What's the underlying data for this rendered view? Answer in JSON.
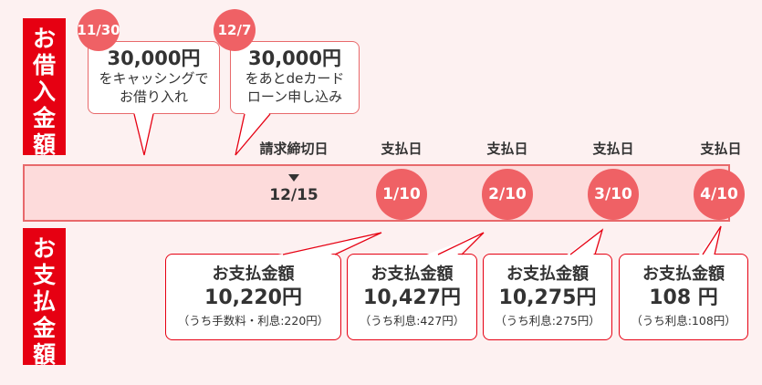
{
  "borrow": {
    "label": "お借入金額",
    "events": [
      {
        "date": "11/30",
        "amount": "30,000円",
        "line1": "をキャッシングで",
        "line2": "お借り入れ"
      },
      {
        "date": "12/7",
        "amount": "30,000円",
        "line1": "をあとdeカード",
        "line2": "ローン申し込み"
      }
    ]
  },
  "timeline": {
    "cutoff_label": "請求締切日",
    "cutoff_date": "12/15",
    "payday_label": "支払日",
    "paydays": [
      "1/10",
      "2/10",
      "3/10",
      "4/10"
    ]
  },
  "payment": {
    "label": "お支払金額",
    "items": [
      {
        "title": "お支払金額",
        "amount": "10,220円",
        "detail": "（うち手数料・利息:220円）"
      },
      {
        "title": "お支払金額",
        "amount": "10,427円",
        "detail": "（うち利息:427円）"
      },
      {
        "title": "お支払金額",
        "amount": "10,275円",
        "detail": "（うち利息:275円）"
      },
      {
        "title": "お支払金額",
        "amount": "108 円",
        "detail": "（うち利息:108円）"
      }
    ]
  },
  "colors": {
    "accent": "#e60012",
    "circle": "#ef6165",
    "band": "#fddbdb",
    "background": "#fdf1f1"
  }
}
